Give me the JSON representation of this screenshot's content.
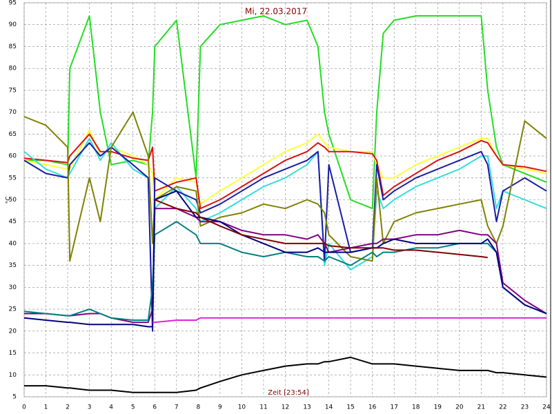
{
  "chart_data": {
    "type": "line",
    "title": "Mi, 22.03.2017",
    "x_label": "Zeit [23:54]",
    "y_label": "°C",
    "xlim": [
      0,
      24
    ],
    "ylim": [
      5,
      95
    ],
    "xticks": [
      0,
      1,
      2,
      3,
      4,
      5,
      6,
      7,
      8,
      9,
      10,
      11,
      12,
      13,
      14,
      15,
      16,
      17,
      18,
      19,
      20,
      21,
      22,
      23,
      24
    ],
    "yticks": [
      5,
      10,
      15,
      20,
      25,
      30,
      35,
      40,
      45,
      50,
      55,
      60,
      65,
      70,
      75,
      80,
      85,
      90,
      95
    ],
    "grid": true,
    "x": [
      0,
      1,
      2,
      2.1,
      3,
      3.5,
      4,
      5,
      5.7,
      5.9,
      6,
      7,
      7.9,
      8.1,
      9,
      10,
      11,
      12,
      13,
      13.5,
      13.8,
      14,
      15,
      16,
      16.2,
      16.5,
      17,
      18,
      19,
      20,
      21,
      21.3,
      21.7,
      22,
      23,
      24
    ],
    "series": [
      {
        "color": "#22dd22",
        "values": [
          59,
          59,
          58,
          80,
          92,
          70,
          58,
          59,
          58,
          70,
          85,
          91,
          55,
          85,
          90,
          91,
          92,
          90,
          91,
          85,
          70,
          65,
          50,
          48,
          70,
          88,
          91,
          92,
          92,
          92,
          92,
          75,
          62,
          58,
          56,
          54
        ]
      },
      {
        "color": "#ffff33",
        "values": [
          59,
          58,
          57,
          57,
          66,
          60,
          62,
          60,
          58,
          56,
          50,
          55,
          54,
          49,
          52,
          55,
          58,
          61,
          63,
          65,
          63,
          62,
          61,
          61,
          58,
          55,
          55,
          58,
          60,
          62,
          64,
          64,
          60,
          58,
          57,
          56
        ]
      },
      {
        "color": "#dd1111",
        "values": [
          59.5,
          59,
          58.5,
          60,
          65,
          61,
          61,
          59.5,
          59,
          62,
          52,
          54,
          55,
          48,
          50,
          53,
          56,
          59,
          61,
          63,
          62,
          61,
          61,
          60.5,
          59,
          51,
          53,
          56,
          59,
          61,
          63.5,
          63,
          60,
          58,
          57.5,
          56.5
        ]
      },
      {
        "color": "#33dddd",
        "values": [
          61,
          57,
          55,
          56,
          64,
          59,
          63,
          57,
          55,
          22,
          48,
          53,
          48,
          45,
          47,
          50,
          53,
          55,
          58,
          61,
          35,
          40,
          34,
          37,
          52,
          48,
          50,
          53,
          55,
          57,
          60,
          60,
          48,
          52,
          50,
          48
        ]
      },
      {
        "color": "#1a1aa8",
        "values": [
          59,
          56,
          55,
          58,
          63,
          60,
          62,
          58,
          55,
          20,
          55,
          52,
          50,
          47,
          49,
          52,
          55,
          57,
          59,
          61,
          36,
          58,
          38,
          39,
          58,
          50,
          52,
          55,
          57,
          59,
          61,
          58,
          45,
          52,
          55,
          52
        ]
      },
      {
        "color": "#808000",
        "values": [
          69,
          67,
          62,
          36,
          55,
          45,
          62,
          70,
          60,
          40,
          50,
          53,
          52,
          44,
          46,
          47,
          49,
          48,
          50,
          49,
          47,
          42,
          37,
          36,
          55,
          40,
          45,
          47,
          48,
          49,
          50,
          44,
          40,
          44,
          68,
          64
        ]
      },
      {
        "color": "#800080",
        "values": [
          24,
          24,
          23.5,
          23.5,
          24,
          24,
          23,
          22,
          22,
          25,
          48,
          48,
          46,
          45,
          45,
          43,
          42,
          42,
          41,
          42,
          40,
          38,
          39,
          40,
          40,
          41,
          41,
          42,
          42,
          43,
          42,
          42,
          40,
          31,
          27,
          24
        ]
      },
      {
        "color": "#008080",
        "values": [
          24.5,
          24,
          23.5,
          23.5,
          25,
          24,
          23,
          22.5,
          22.5,
          30,
          42,
          45,
          42,
          40,
          40,
          38,
          37,
          38,
          37,
          37,
          36,
          37,
          35,
          38,
          37,
          38,
          38,
          39,
          39,
          40,
          40,
          40,
          38,
          30,
          26,
          24
        ]
      },
      {
        "color": "#000080",
        "values": [
          23,
          22.5,
          22,
          22,
          21.5,
          21.5,
          21.5,
          21.5,
          21,
          21,
          50,
          52,
          46,
          46,
          45,
          42,
          40,
          38,
          38,
          39,
          38,
          38,
          38,
          39,
          39,
          40,
          41,
          40,
          40,
          40,
          40,
          41,
          38,
          30,
          26,
          24
        ]
      },
      {
        "color": "#800000",
        "values": [
          null,
          null,
          null,
          null,
          null,
          null,
          null,
          null,
          null,
          null,
          50,
          48,
          47,
          46,
          44,
          42,
          41,
          40,
          40,
          40,
          40,
          39.5,
          39,
          39,
          39,
          39,
          38.5,
          38.5,
          38,
          37.5,
          37,
          36.8,
          null,
          null,
          null,
          null
        ]
      },
      {
        "color": "#dd22dd",
        "values": [
          null,
          null,
          null,
          null,
          null,
          null,
          null,
          null,
          null,
          22,
          22,
          22.5,
          22.5,
          23,
          23,
          23,
          23,
          23,
          23,
          23,
          23,
          23,
          23,
          23,
          23,
          23,
          23,
          23,
          23,
          23,
          23,
          23,
          23,
          23,
          23,
          23
        ]
      },
      {
        "color": "#000000",
        "values": [
          7.5,
          7.5,
          7,
          7,
          6.5,
          6.5,
          6.5,
          6,
          6,
          6,
          6,
          6,
          6.5,
          7,
          8.5,
          10,
          11,
          12,
          12.5,
          12.5,
          13,
          13,
          14,
          12.5,
          12.5,
          12.5,
          12.5,
          12,
          11.5,
          11,
          11,
          11,
          10.5,
          10.5,
          10,
          9.5
        ]
      }
    ]
  }
}
